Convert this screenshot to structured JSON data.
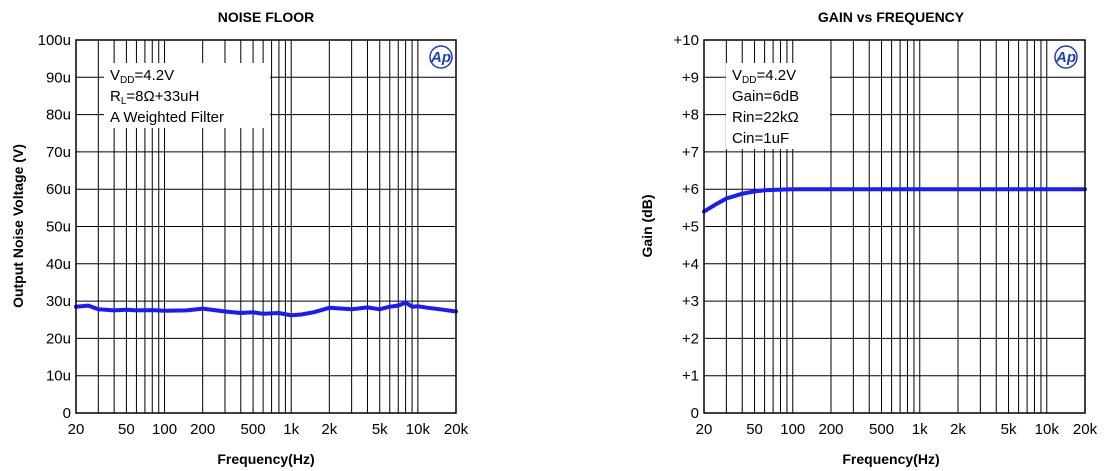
{
  "chart_data": [
    {
      "type": "line",
      "title": "NOISE FLOOR",
      "xlabel": "Frequency(Hz)",
      "ylabel": "Output Noise Voltage (V)",
      "x_scale": "log",
      "xlim": [
        20,
        20000
      ],
      "ylim": [
        0,
        0.0001
      ],
      "grid": true,
      "x_tick_values": [
        20,
        50,
        100,
        200,
        500,
        1000,
        2000,
        5000,
        10000,
        20000
      ],
      "x_tick_labels": [
        "20",
        "50",
        "100",
        "200",
        "500",
        "1k",
        "2k",
        "5k",
        "10k",
        "20k"
      ],
      "y_tick_values": [
        0,
        1e-05,
        2e-05,
        3e-05,
        4e-05,
        5e-05,
        6e-05,
        7e-05,
        8e-05,
        9e-05,
        0.0001
      ],
      "y_tick_labels": [
        "0",
        "10u",
        "20u",
        "30u",
        "40u",
        "50u",
        "60u",
        "70u",
        "80u",
        "90u",
        "100u"
      ],
      "annotations": [
        {
          "text": "V",
          "sub": "DD",
          "after": "=4.2V"
        },
        {
          "text": "R",
          "sub": "L",
          "after": "=8Ω+33uH"
        },
        {
          "text": "A Weighted Filter",
          "sub": "",
          "after": ""
        }
      ],
      "series": [
        {
          "color": "#1a1aff",
          "x": [
            20,
            25,
            30,
            40,
            50,
            60,
            80,
            100,
            150,
            200,
            300,
            400,
            500,
            600,
            800,
            1000,
            1200,
            1500,
            2000,
            3000,
            4000,
            5000,
            6000,
            7000,
            8000,
            9000,
            10000,
            12000,
            15000,
            20000
          ],
          "y": [
            2.85e-05,
            2.88e-05,
            2.78e-05,
            2.75e-05,
            2.77e-05,
            2.75e-05,
            2.76e-05,
            2.74e-05,
            2.75e-05,
            2.8e-05,
            2.72e-05,
            2.68e-05,
            2.7e-05,
            2.66e-05,
            2.68e-05,
            2.62e-05,
            2.64e-05,
            2.7e-05,
            2.82e-05,
            2.78e-05,
            2.83e-05,
            2.78e-05,
            2.85e-05,
            2.88e-05,
            2.96e-05,
            2.85e-05,
            2.86e-05,
            2.82e-05,
            2.78e-05,
            2.72e-05
          ]
        }
      ]
    },
    {
      "type": "line",
      "title": "GAIN vs FREQUENCY",
      "xlabel": "Frequency(Hz)",
      "ylabel": "Gain (dB)",
      "x_scale": "log",
      "xlim": [
        20,
        20000
      ],
      "ylim": [
        0,
        10
      ],
      "grid": true,
      "x_tick_values": [
        20,
        50,
        100,
        200,
        500,
        1000,
        2000,
        5000,
        10000,
        20000
      ],
      "x_tick_labels": [
        "20",
        "50",
        "100",
        "200",
        "500",
        "1k",
        "2k",
        "5k",
        "10k",
        "20k"
      ],
      "y_tick_values": [
        0,
        1,
        2,
        3,
        4,
        5,
        6,
        7,
        8,
        9,
        10
      ],
      "y_tick_labels": [
        "0",
        "+1",
        "+2",
        "+3",
        "+4",
        "+5",
        "+6",
        "+7",
        "+8",
        "+9",
        "+10"
      ],
      "annotations": [
        {
          "text": "V",
          "sub": "DD",
          "after": "=4.2V"
        },
        {
          "text": "Gain=6dB",
          "sub": "",
          "after": ""
        },
        {
          "text": "Rin=22kΩ",
          "sub": "",
          "after": ""
        },
        {
          "text": "Cin=1uF",
          "sub": "",
          "after": ""
        }
      ],
      "series": [
        {
          "color": "#1a1aff",
          "x": [
            20,
            25,
            30,
            40,
            50,
            60,
            80,
            100,
            150,
            200,
            500,
            1000,
            2000,
            5000,
            10000,
            20000
          ],
          "y": [
            5.4,
            5.6,
            5.75,
            5.88,
            5.94,
            5.97,
            5.99,
            6.0,
            6.0,
            6.0,
            6.0,
            6.0,
            6.0,
            6.0,
            6.0,
            6.0
          ]
        }
      ]
    }
  ]
}
